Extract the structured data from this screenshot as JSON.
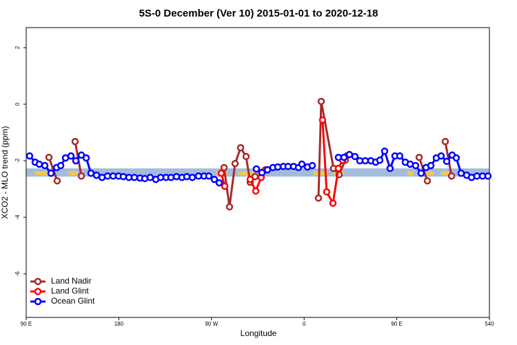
{
  "chart_data": {
    "type": "line",
    "title": "5S-0 December (Ver 10)   2015-01-01 to 2020-12-18",
    "x_label": "Longitude",
    "y_label": "XCO2 - MLO trend (ppm)",
    "xlim": [
      90,
      540
    ],
    "ylim": [
      -7.54,
      2.71
    ],
    "xticks": [
      {
        "value": 90,
        "label": "90 E"
      },
      180,
      {
        "value": 270,
        "label": "90 W"
      },
      {
        "value": 360,
        "label": "0"
      },
      {
        "value": 450,
        "label": "90 E"
      },
      540
    ],
    "yticks": [
      -6,
      -4,
      -2,
      0,
      2
    ],
    "legend": "bottom-left",
    "band": {
      "range": [
        -2.56,
        -2.27
      ],
      "color": "#a4bcdc"
    },
    "land": {
      "color": "#f2c94c",
      "ranges": [
        [
          98,
          111
        ],
        [
          131,
          140
        ],
        [
          275,
          285
        ],
        [
          296,
          322
        ],
        [
          369,
          383
        ],
        [
          388,
          399
        ],
        [
          460,
          466
        ],
        [
          474,
          486
        ],
        [
          493,
          503
        ]
      ]
    },
    "series": [
      {
        "name": "Land Nadir",
        "color": "#a52a2a",
        "x": [
          112.1,
          120.1,
          null,
          137.5,
          143.6,
          null,
          282.2,
          287.5,
          292.9,
          298.3,
          303.6,
          307.6,
          312.3,
          null,
          373.9,
          376.6,
          388.6,
          394.0,
          400.0,
          null,
          471.7,
          479.7,
          null,
          497.1,
          503.2
        ],
        "values": [
          -1.88,
          -2.71,
          null,
          -1.32,
          -2.54,
          null,
          -2.24,
          -3.63,
          -2.1,
          -1.54,
          -1.85,
          -2.76,
          -2.56,
          null,
          -3.32,
          0.1,
          -2.27,
          -2.49,
          -1.98,
          null,
          -1.88,
          -2.71,
          null,
          -1.32,
          -2.54
        ]
      },
      {
        "name": "Land Glint",
        "color": "#ff0000",
        "x": [
          279.5,
          282.9,
          null,
          307.6,
          313.0,
          318.3,
          322.4,
          null,
          377.9,
          381.9,
          388.0,
          393.3,
          397.4,
          401.4
        ],
        "values": [
          -2.44,
          -2.9,
          null,
          -2.66,
          -3.07,
          -2.59,
          -2.32,
          null,
          -0.56,
          -3.1,
          -3.5,
          -2.27,
          -1.98,
          -1.83
        ]
      },
      {
        "name": "Ocean Glint",
        "color": "#0000ff",
        "x": [
          93.3,
          98.7,
          102.7,
          108.1,
          114.1,
          119.5,
          123.5,
          128.2,
          133.5,
          138.2,
          143.6,
          148.3,
          152.9,
          158.3,
          163.7,
          169.0,
          174.4,
          179.7,
          184.4,
          189.8,
          195.1,
          200.5,
          205.2,
          210.5,
          215.9,
          220.6,
          225.9,
          230.6,
          236.0,
          241.3,
          246.0,
          251.4,
          257.4,
          262.8,
          267.4,
          272.8,
          277.5,
          null,
          313.6,
          319.0,
          324.4,
          329.7,
          334.4,
          339.8,
          344.4,
          349.8,
          354.5,
          357.8,
          363.2,
          367.9,
          null,
          393.3,
          398.7,
          404.0,
          409.4,
          414.1,
          419.4,
          424.8,
          429.5,
          433.5,
          438.2,
          443.5,
          448.2,
          452.9,
          458.3,
          463.0,
          468.3,
          473.7,
          478.4,
          483.1,
          488.4,
          493.1,
          498.5,
          503.8,
          507.8,
          512.5,
          517.9,
          522.6,
          527.9,
          533.3,
          538.6
        ],
        "values": [
          -1.83,
          -2.05,
          -2.12,
          -2.17,
          -2.44,
          -2.24,
          -2.17,
          -1.9,
          -1.83,
          -2.0,
          -1.8,
          -1.9,
          -2.44,
          -2.51,
          -2.59,
          -2.54,
          -2.54,
          -2.54,
          -2.56,
          -2.59,
          -2.59,
          -2.61,
          -2.63,
          -2.59,
          -2.66,
          -2.59,
          -2.59,
          -2.59,
          -2.56,
          -2.59,
          -2.56,
          -2.59,
          -2.54,
          -2.54,
          -2.54,
          -2.66,
          -2.78,
          null,
          -2.29,
          -2.42,
          -2.32,
          -2.24,
          -2.22,
          -2.2,
          -2.2,
          -2.2,
          -2.24,
          -2.12,
          -2.22,
          -2.17,
          null,
          -1.88,
          -1.88,
          -1.78,
          -1.85,
          -2.0,
          -2.0,
          -2.0,
          -2.05,
          -1.98,
          -1.66,
          -2.27,
          -1.83,
          -1.83,
          -2.05,
          -2.12,
          -2.17,
          -2.44,
          -2.24,
          -2.17,
          -1.9,
          -1.83,
          -2.02,
          -1.8,
          -1.9,
          -2.44,
          -2.51,
          -2.59,
          -2.54,
          -2.54,
          -2.54
        ]
      }
    ]
  }
}
